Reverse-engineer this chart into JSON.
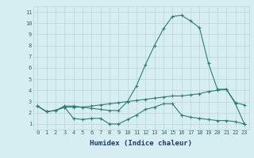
{
  "xlabel": "Humidex (Indice chaleur)",
  "x": [
    0,
    1,
    2,
    3,
    4,
    5,
    6,
    7,
    8,
    9,
    10,
    11,
    12,
    13,
    14,
    15,
    16,
    17,
    18,
    19,
    20,
    21,
    22,
    23
  ],
  "curve_max": [
    2.6,
    2.1,
    2.2,
    2.6,
    2.6,
    2.5,
    2.4,
    2.3,
    2.2,
    2.2,
    3.0,
    4.4,
    6.3,
    8.0,
    9.5,
    10.6,
    10.7,
    10.2,
    9.6,
    6.4,
    4.1,
    4.1,
    2.9,
    2.7
  ],
  "curve_avg": [
    2.6,
    2.1,
    2.2,
    2.5,
    2.5,
    2.5,
    2.6,
    2.7,
    2.8,
    2.9,
    3.0,
    3.1,
    3.2,
    3.3,
    3.4,
    3.5,
    3.5,
    3.6,
    3.7,
    3.9,
    4.0,
    4.1,
    2.8,
    1.0
  ],
  "curve_min": [
    2.6,
    2.1,
    2.2,
    2.5,
    1.5,
    1.4,
    1.5,
    1.5,
    1.0,
    1.0,
    1.4,
    1.8,
    2.3,
    2.5,
    2.8,
    2.8,
    1.8,
    1.6,
    1.5,
    1.4,
    1.3,
    1.3,
    1.2,
    1.0
  ],
  "color": "#2e7d70",
  "bg_color": "#d6eef2",
  "grid_color": "#b8d4d8",
  "ylim": [
    0.5,
    11.5
  ],
  "xlim": [
    -0.5,
    23.5
  ],
  "yticks": [
    1,
    2,
    3,
    4,
    5,
    6,
    7,
    8,
    9,
    10,
    11
  ],
  "xticks": [
    0,
    1,
    2,
    3,
    4,
    5,
    6,
    7,
    8,
    9,
    10,
    11,
    12,
    13,
    14,
    15,
    16,
    17,
    18,
    19,
    20,
    21,
    22,
    23
  ],
  "tick_color": "#2e6b6b",
  "label_color": "#1a3a6b",
  "tick_fontsize": 5.0,
  "xlabel_fontsize": 6.5
}
